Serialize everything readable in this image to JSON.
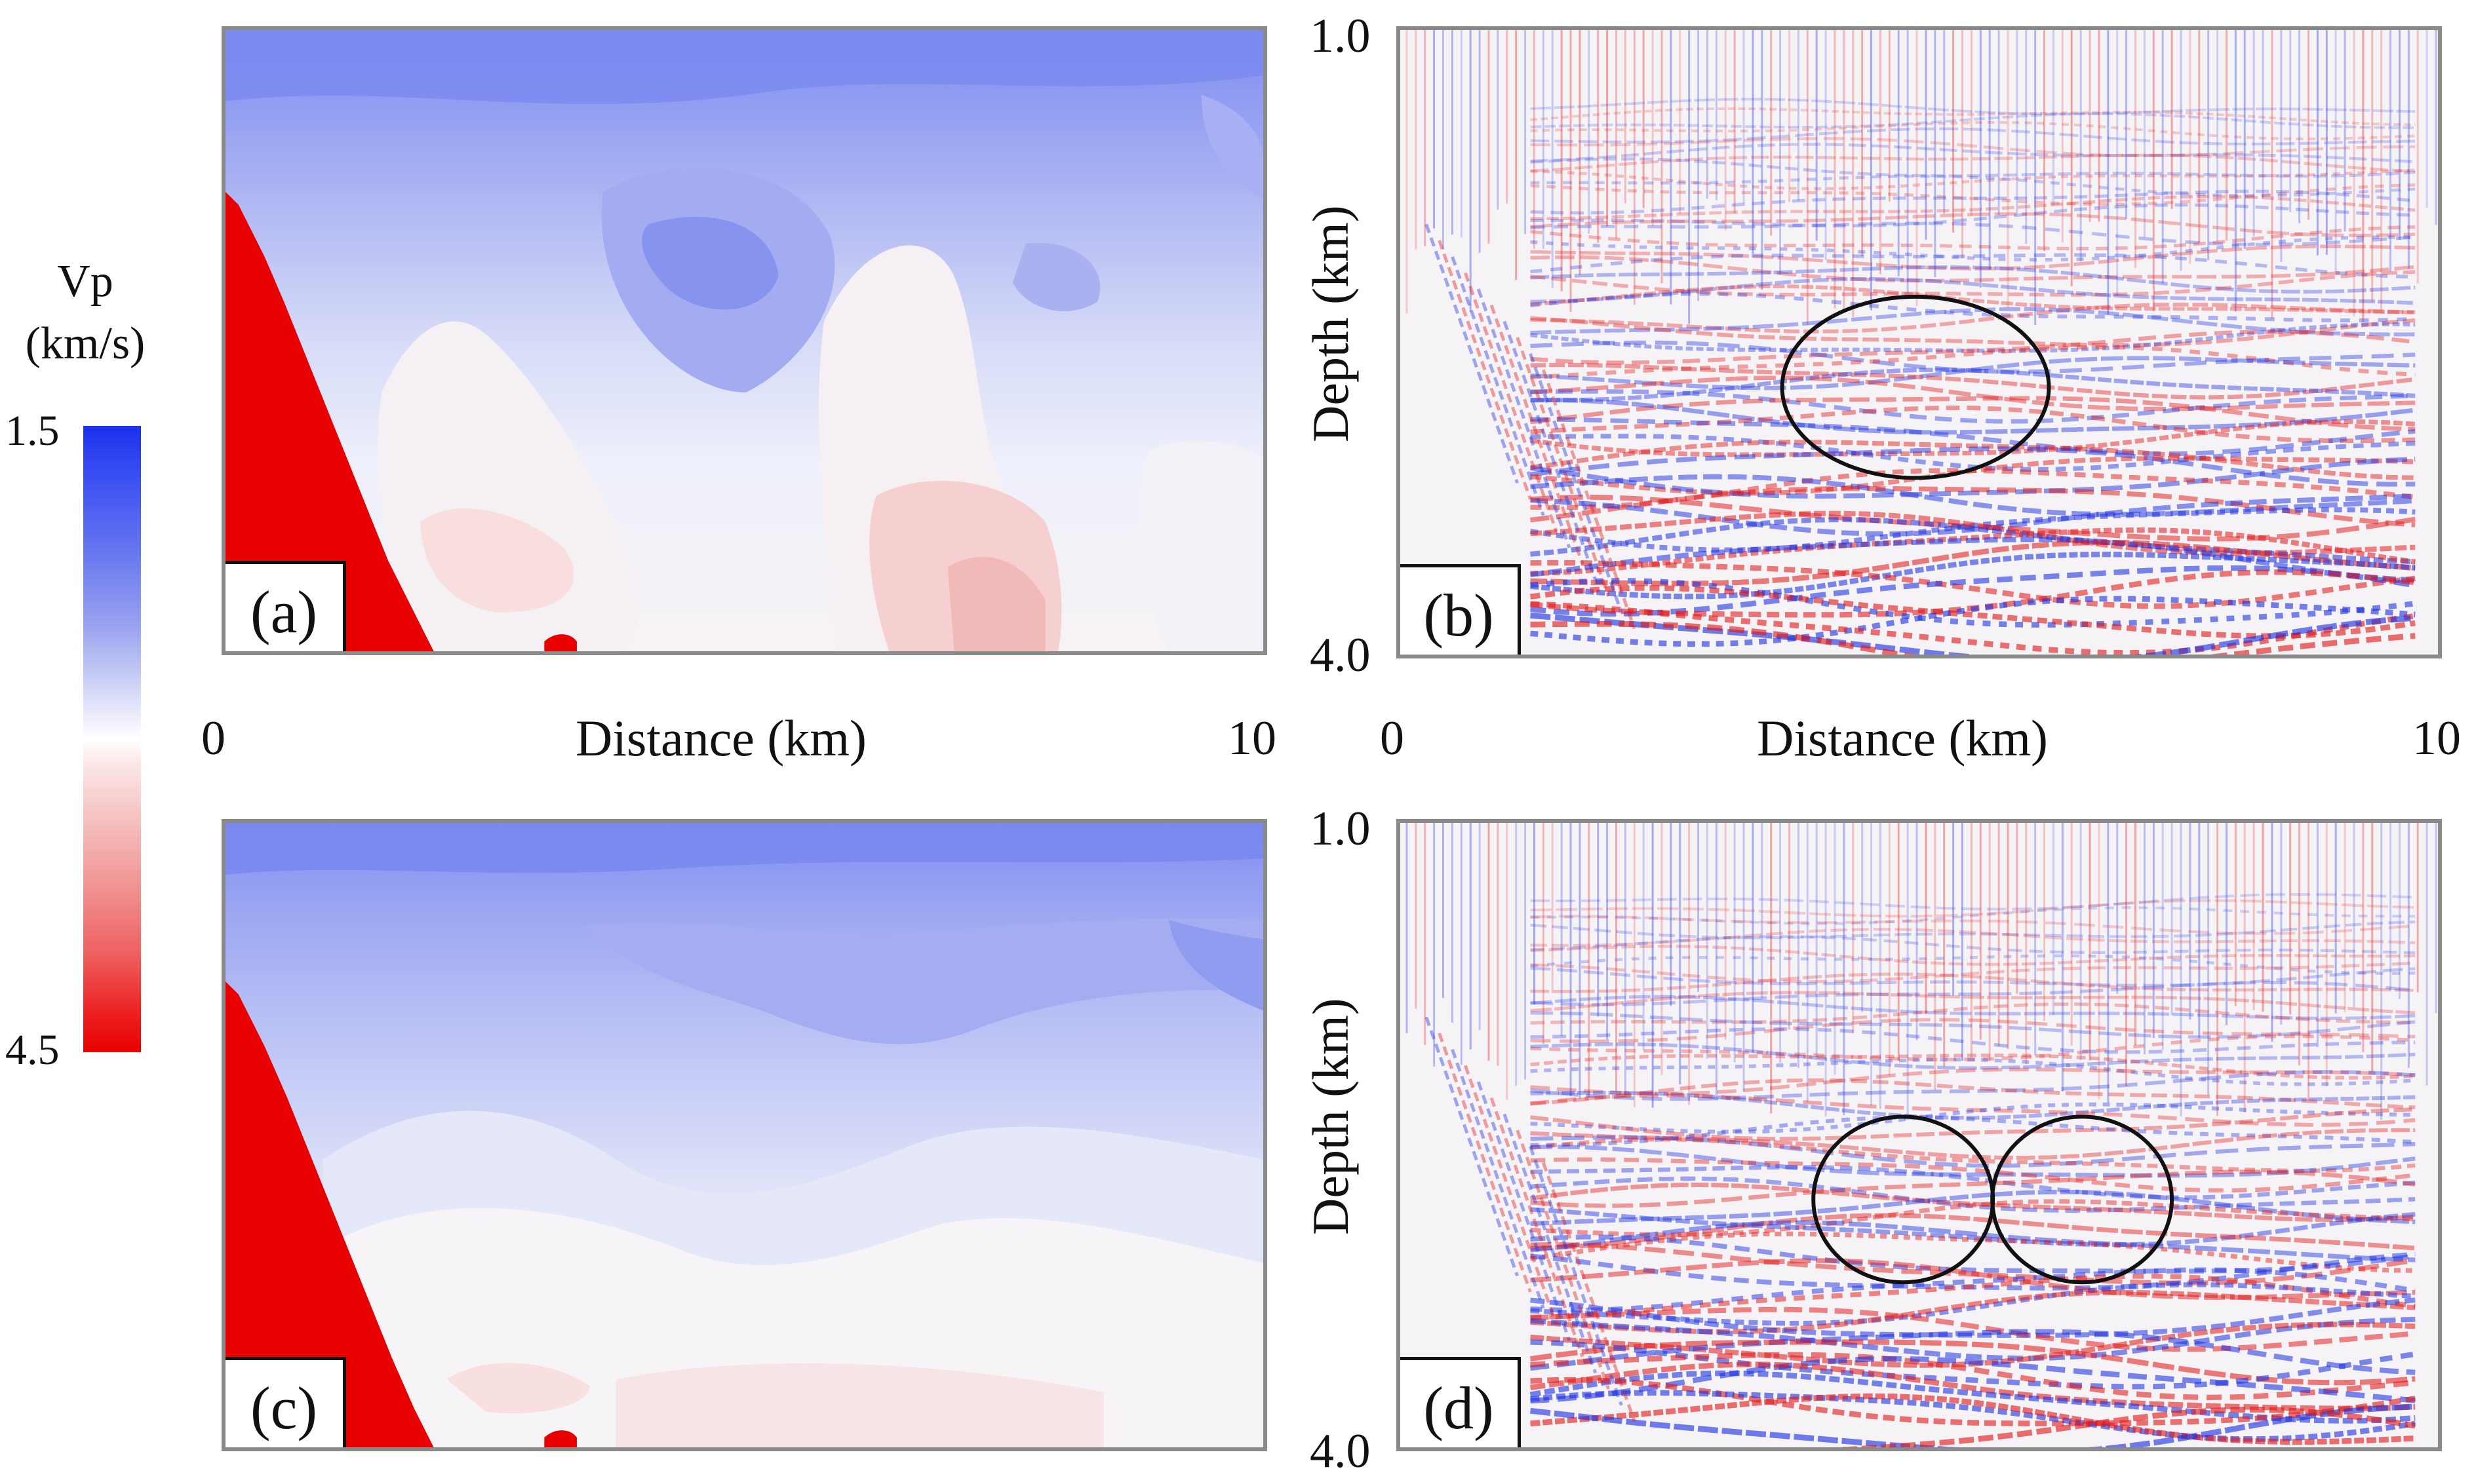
{
  "colorbar": {
    "title_line1": "Vp",
    "title_line2": "(km/s)",
    "min_label": "1.5",
    "max_label": "4.5",
    "min_value": 1.5,
    "max_value": 4.5,
    "low_color": "#1c30ee",
    "mid_color": "#ffffff",
    "high_color": "#e80000"
  },
  "panels": {
    "a": {
      "tag": "(a)",
      "kind": "velocity model"
    },
    "b": {
      "tag": "(b)",
      "kind": "migrated image",
      "depth_label": "Depth (km)",
      "depth_top": "1.0",
      "depth_bottom": "4.0",
      "circles": 1
    },
    "c": {
      "tag": "(c)",
      "kind": "velocity model"
    },
    "d": {
      "tag": "(d)",
      "kind": "migrated image",
      "depth_label": "Depth (km)",
      "depth_top": "1.0",
      "depth_bottom": "4.0",
      "circles": 2
    }
  },
  "x_axis": {
    "label": "Distance (km)",
    "left_tick": "0",
    "right_tick": "10",
    "min": 0,
    "max": 10
  },
  "image_colors": {
    "negative": "#1a2fe0",
    "positive": "#e01818",
    "annotation": "#111111"
  }
}
